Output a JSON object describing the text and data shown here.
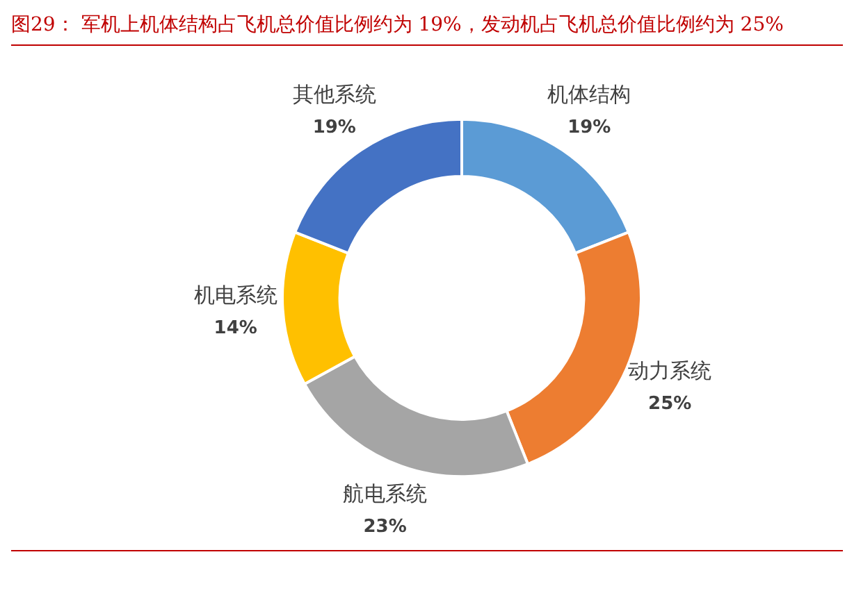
{
  "chart_data": {
    "type": "donut",
    "title": "图29：  军机上机体结构占飞机总价值比例约为 19%，发动机占飞机总价值比例约为 25%",
    "categories": [
      "机体结构",
      "动力系统",
      "航电系统",
      "机电系统",
      "其他系统"
    ],
    "values": [
      19,
      25,
      23,
      14,
      19
    ],
    "value_labels": [
      "19%",
      "25%",
      "23%",
      "14%",
      "19%"
    ],
    "colors": [
      "#5b9bd5",
      "#ed7d31",
      "#a5a5a5",
      "#ffc000",
      "#4472c4"
    ],
    "legend": false
  }
}
